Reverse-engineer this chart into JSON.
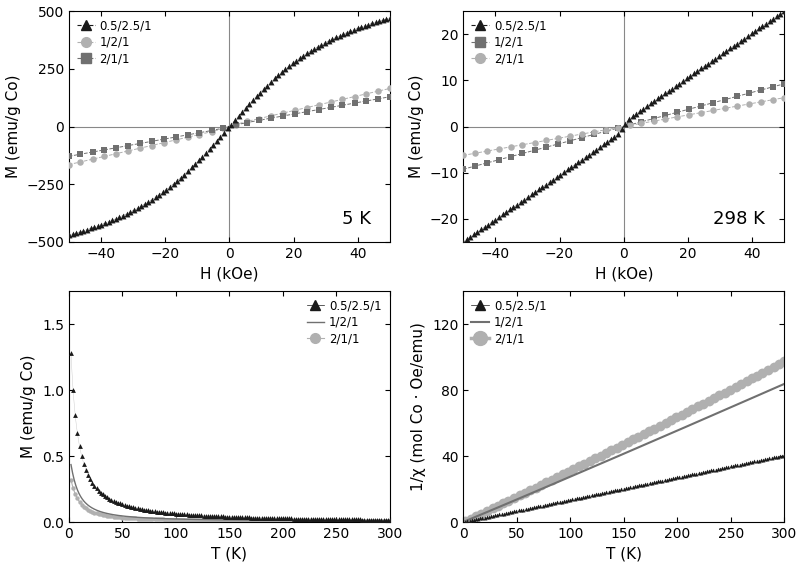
{
  "fig_width": 8.03,
  "fig_height": 5.67,
  "dpi": 100,
  "colors": {
    "black": "#1a1a1a",
    "light_gray": "#b0b0b0",
    "medium_gray": "#707070",
    "dark_gray": "#404040"
  },
  "top_left": {
    "xlabel": "H (kOe)",
    "ylabel": "M (emu/g Co)",
    "label": "5 K",
    "xlim": [
      -50,
      50
    ],
    "ylim": [
      -500,
      500
    ],
    "xticks": [
      -40,
      -20,
      0,
      20,
      40
    ],
    "yticks": [
      -500,
      -250,
      0,
      250,
      500
    ]
  },
  "top_right": {
    "xlabel": "H (kOe)",
    "ylabel": "M (emu/g Co)",
    "label": "298 K",
    "xlim": [
      -50,
      50
    ],
    "ylim": [
      -25,
      25
    ],
    "xticks": [
      -40,
      -20,
      0,
      20,
      40
    ],
    "yticks": [
      -20,
      -10,
      0,
      10,
      20
    ]
  },
  "bottom_left": {
    "xlabel": "T (K)",
    "ylabel": "M (emu/g Co)",
    "xlim": [
      0,
      300
    ],
    "ylim": [
      0,
      1.75
    ],
    "xticks": [
      0,
      50,
      100,
      150,
      200,
      250,
      300
    ],
    "yticks": [
      0.0,
      0.5,
      1.0,
      1.5
    ]
  },
  "bottom_right": {
    "xlabel": "T (K)",
    "ylabel": "1/χ (mol Co · Oe/emu)",
    "xlim": [
      0,
      300
    ],
    "ylim": [
      0,
      140
    ],
    "xticks": [
      0,
      50,
      100,
      150,
      200,
      250,
      300
    ],
    "yticks": [
      0,
      40,
      80,
      120
    ]
  },
  "legend_labels": [
    "0.5/2.5/1",
    "1/2/1",
    "2/1/1"
  ]
}
